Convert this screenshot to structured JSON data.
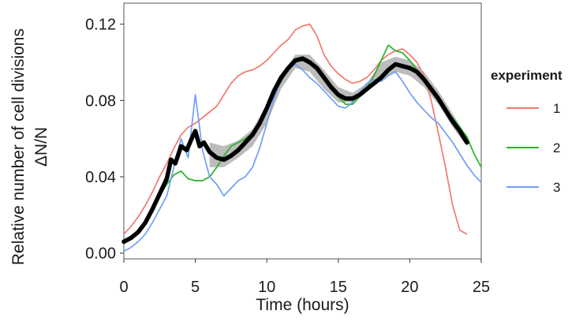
{
  "chart_data": {
    "type": "line",
    "xlabel": "Time (hours)",
    "ylabel": "Relative number of cell divisions",
    "ylabel_sub": "ΔN/N",
    "xlim": [
      0,
      25
    ],
    "ylim": [
      -0.003,
      0.131
    ],
    "x_ticks": [
      0,
      5,
      10,
      15,
      20,
      25
    ],
    "x_tick_labels": [
      "0",
      "5",
      "10",
      "15",
      "20",
      "25"
    ],
    "y_ticks": [
      0.0,
      0.04,
      0.08,
      0.12
    ],
    "y_tick_labels": [
      "0.00",
      "0.04",
      "0.08",
      "0.12"
    ],
    "grid": false,
    "legend": {
      "title": "experiment",
      "placement": "right",
      "entries": [
        "1",
        "2",
        "3"
      ]
    },
    "colors": {
      "1": "#f07a6e",
      "2": "#26b326",
      "3": "#6f9ff2",
      "mean": "#000000",
      "band": "#b0b0b0"
    },
    "series": [
      {
        "name": "1",
        "x": [
          0,
          0.5,
          1,
          1.5,
          2,
          2.5,
          3,
          3.5,
          4,
          4.5,
          5,
          5.5,
          6,
          6.5,
          7,
          7.5,
          8,
          8.5,
          9,
          9.5,
          10,
          10.5,
          11,
          11.5,
          12,
          12.5,
          13,
          13.5,
          14,
          14.5,
          15,
          15.5,
          16,
          16.5,
          17,
          17.5,
          18,
          18.5,
          19,
          19.5,
          20,
          20.5,
          21,
          21.5,
          22,
          22.5,
          23,
          23.5,
          24
        ],
        "y": [
          0.01,
          0.014,
          0.019,
          0.025,
          0.032,
          0.04,
          0.047,
          0.055,
          0.062,
          0.066,
          0.068,
          0.071,
          0.074,
          0.077,
          0.083,
          0.089,
          0.093,
          0.095,
          0.096,
          0.098,
          0.101,
          0.105,
          0.109,
          0.112,
          0.117,
          0.119,
          0.12,
          0.114,
          0.104,
          0.098,
          0.094,
          0.091,
          0.089,
          0.09,
          0.092,
          0.096,
          0.101,
          0.104,
          0.106,
          0.107,
          0.104,
          0.1,
          0.093,
          0.08,
          0.063,
          0.045,
          0.025,
          0.012,
          0.01
        ]
      },
      {
        "name": "2",
        "x": [
          0,
          0.5,
          1,
          1.5,
          2,
          2.5,
          3,
          3.5,
          4,
          4.5,
          5,
          5.5,
          6,
          6.5,
          7,
          7.5,
          8,
          8.5,
          9,
          9.5,
          10,
          10.5,
          11,
          11.5,
          12,
          12.5,
          13,
          13.5,
          14,
          14.5,
          15,
          15.5,
          16,
          16.5,
          17,
          17.5,
          18,
          18.5,
          19,
          19.5,
          20,
          20.5,
          21,
          21.5,
          22,
          22.5,
          23,
          23.5,
          24,
          24.5,
          25
        ],
        "y": [
          0.005,
          0.008,
          0.012,
          0.017,
          0.023,
          0.03,
          0.036,
          0.041,
          0.043,
          0.039,
          0.038,
          0.038,
          0.04,
          0.045,
          0.051,
          0.056,
          0.058,
          0.06,
          0.063,
          0.067,
          0.075,
          0.083,
          0.09,
          0.096,
          0.1,
          0.101,
          0.099,
          0.096,
          0.092,
          0.087,
          0.082,
          0.078,
          0.078,
          0.082,
          0.087,
          0.093,
          0.101,
          0.109,
          0.106,
          0.105,
          0.101,
          0.096,
          0.09,
          0.085,
          0.08,
          0.075,
          0.071,
          0.066,
          0.061,
          0.052,
          0.045
        ]
      },
      {
        "name": "3",
        "x": [
          0,
          0.5,
          1,
          1.5,
          2,
          2.5,
          3,
          3.5,
          4,
          4.5,
          5,
          5.5,
          6,
          6.5,
          7,
          7.5,
          8,
          8.5,
          9,
          9.5,
          10,
          10.5,
          11,
          11.5,
          12,
          12.5,
          13,
          13.5,
          14,
          14.5,
          15,
          15.5,
          16,
          16.5,
          17,
          17.5,
          18,
          18.5,
          19,
          19.5,
          20,
          20.5,
          21,
          21.5,
          22,
          22.5,
          23,
          23.5,
          24,
          24.5,
          25
        ],
        "y": [
          0.001,
          0.003,
          0.006,
          0.01,
          0.016,
          0.023,
          0.03,
          0.045,
          0.06,
          0.05,
          0.083,
          0.054,
          0.04,
          0.036,
          0.03,
          0.034,
          0.038,
          0.04,
          0.045,
          0.055,
          0.068,
          0.081,
          0.091,
          0.097,
          0.099,
          0.096,
          0.092,
          0.089,
          0.085,
          0.081,
          0.077,
          0.076,
          0.079,
          0.084,
          0.089,
          0.091,
          0.09,
          0.093,
          0.095,
          0.09,
          0.084,
          0.079,
          0.075,
          0.071,
          0.068,
          0.063,
          0.058,
          0.052,
          0.046,
          0.041,
          0.037
        ]
      },
      {
        "name": "",
        "role": "mean",
        "x": [
          0,
          0.5,
          1,
          1.5,
          2,
          2.5,
          3,
          3.3,
          3.6,
          4,
          4.4,
          4.8,
          5,
          5.3,
          5.6,
          6,
          6.5,
          7,
          7.5,
          8,
          8.5,
          9,
          9.5,
          10,
          10.5,
          11,
          11.5,
          12,
          12.5,
          13,
          13.5,
          14,
          14.5,
          15,
          15.5,
          16,
          16.5,
          17,
          17.5,
          18,
          18.5,
          19,
          19.5,
          20,
          20.5,
          21,
          21.5,
          22,
          22.5,
          23,
          23.5,
          24
        ],
        "y": [
          0.006,
          0.008,
          0.011,
          0.016,
          0.023,
          0.031,
          0.039,
          0.049,
          0.047,
          0.056,
          0.054,
          0.061,
          0.064,
          0.056,
          0.058,
          0.053,
          0.05,
          0.049,
          0.051,
          0.054,
          0.058,
          0.062,
          0.068,
          0.076,
          0.085,
          0.092,
          0.097,
          0.101,
          0.102,
          0.1,
          0.097,
          0.092,
          0.087,
          0.083,
          0.081,
          0.081,
          0.083,
          0.086,
          0.089,
          0.092,
          0.096,
          0.099,
          0.098,
          0.097,
          0.095,
          0.091,
          0.086,
          0.081,
          0.075,
          0.069,
          0.064,
          0.058
        ]
      }
    ],
    "band": {
      "x": [
        6,
        7,
        8,
        9,
        10,
        11,
        12,
        13,
        14,
        15,
        16,
        17,
        18,
        19,
        20,
        21,
        22,
        23,
        24
      ],
      "low": [
        0.045,
        0.045,
        0.05,
        0.056,
        0.068,
        0.086,
        0.097,
        0.095,
        0.086,
        0.079,
        0.079,
        0.085,
        0.091,
        0.095,
        0.093,
        0.087,
        0.078,
        0.066,
        0.056
      ],
      "high": [
        0.058,
        0.056,
        0.059,
        0.065,
        0.078,
        0.093,
        0.104,
        0.104,
        0.096,
        0.087,
        0.084,
        0.089,
        0.1,
        0.103,
        0.101,
        0.095,
        0.085,
        0.073,
        0.061
      ]
    }
  }
}
